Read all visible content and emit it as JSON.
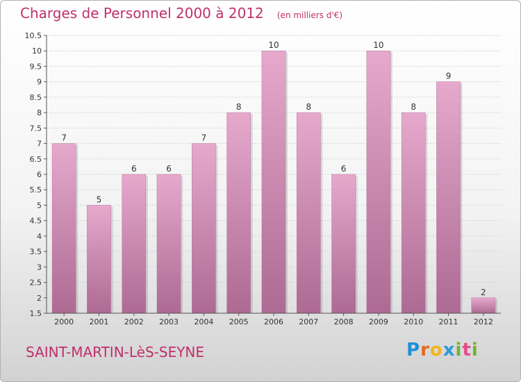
{
  "chart_data": {
    "type": "bar",
    "title": "Charges de Personnel 2000 à 2012",
    "subtitle": "(en milliers d'€)",
    "categories": [
      "2000",
      "2001",
      "2002",
      "2003",
      "2004",
      "2005",
      "2006",
      "2007",
      "2008",
      "2009",
      "2010",
      "2011",
      "2012"
    ],
    "values": [
      7,
      5,
      6,
      6,
      7,
      8,
      10,
      8,
      6,
      10,
      8,
      9,
      2
    ],
    "data_labels": [
      "7",
      "5",
      "6",
      "6",
      "7",
      "8",
      "10",
      "8",
      "6",
      "10",
      "8",
      "9",
      "2"
    ],
    "ylim": [
      1.5,
      10.5
    ],
    "yticks": [
      1.5,
      2,
      2.5,
      3,
      3.5,
      4,
      4.5,
      5,
      5.5,
      6,
      6.5,
      7,
      7.5,
      8,
      8.5,
      9,
      9.5,
      10,
      10.5
    ],
    "ytick_labels": [
      "1.5",
      "2",
      "2.5",
      "3",
      "3.5",
      "4",
      "4.5",
      "5",
      "5.5",
      "6",
      "6.5",
      "7",
      "7.5",
      "8",
      "8.5",
      "9",
      "9.5",
      "10",
      "10.5"
    ],
    "grid": true,
    "bar_color": "#d890b8"
  },
  "footer": {
    "commune": "SAINT-MARTIN-LèS-SEYNE",
    "logo_letters": [
      "P",
      "r",
      "o",
      "x",
      "i",
      "t",
      "i"
    ]
  }
}
